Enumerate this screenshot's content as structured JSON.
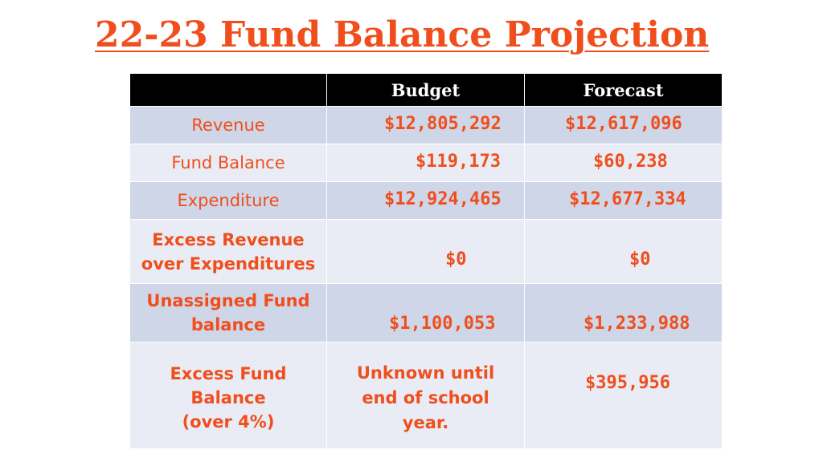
{
  "title": "22-23 Fund Balance Projection",
  "header": {
    "blank": "",
    "budget": "Budget",
    "forecast": "Forecast"
  },
  "rows": [
    {
      "label": "Revenue",
      "budget": "$12,805,292",
      "forecast": "$12,617,096"
    },
    {
      "label": "Fund Balance",
      "budget": "$119,173",
      "forecast": "$60,238"
    },
    {
      "label": "Expenditure",
      "budget": "$12,924,465",
      "forecast": "$12,677,334"
    },
    {
      "label_line1": "Excess Revenue",
      "label_line2": "over Expenditures",
      "budget": "$0",
      "forecast": "$0"
    },
    {
      "label_line1": "Unassigned Fund",
      "label_line2": "balance",
      "budget": "$1,100,053",
      "forecast": "$1,233,988"
    },
    {
      "label_line1": "Excess Fund",
      "label_line2": "Balance",
      "label_line3": "(over 4%)",
      "budget_line1": "Unknown until",
      "budget_line2": "end of school",
      "budget_line3": "year.",
      "forecast": "$395,956"
    }
  ],
  "colors": {
    "accent": "#f04e1c",
    "header_bg": "#000000",
    "row_dark": "#cfd6e8",
    "row_light": "#e9ecf4"
  }
}
